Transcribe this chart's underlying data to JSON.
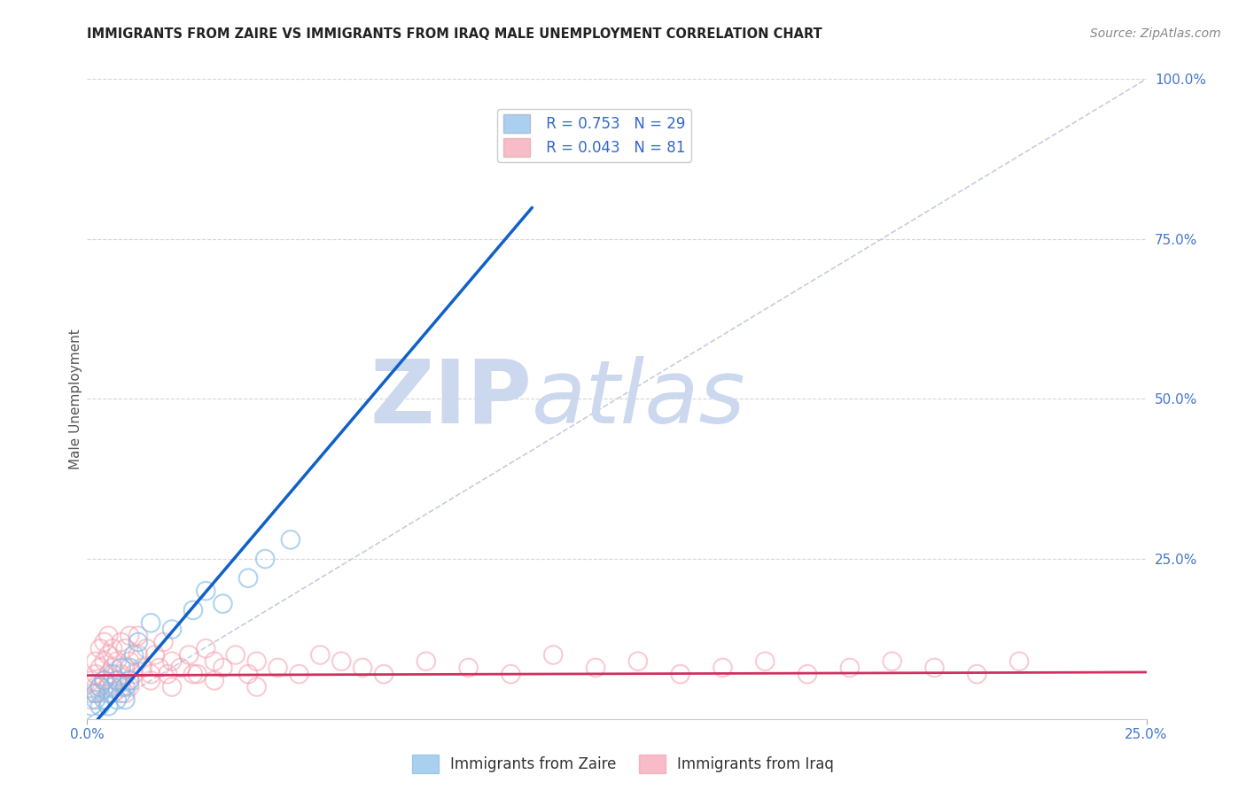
{
  "title": "IMMIGRANTS FROM ZAIRE VS IMMIGRANTS FROM IRAQ MALE UNEMPLOYMENT CORRELATION CHART",
  "source": "Source: ZipAtlas.com",
  "ylabel": "Male Unemployment",
  "xlim": [
    0.0,
    0.25
  ],
  "ylim": [
    0.0,
    1.0
  ],
  "xticks": [
    0.0,
    0.25
  ],
  "xticklabels": [
    "0.0%",
    "25.0%"
  ],
  "yticks": [
    0.0,
    0.25,
    0.5,
    0.75,
    1.0
  ],
  "yticklabels_right": [
    "",
    "25.0%",
    "50.0%",
    "75.0%",
    "100.0%"
  ],
  "grid_yticks": [
    0.25,
    0.5,
    0.75,
    1.0
  ],
  "zaire_R": 0.753,
  "zaire_N": 29,
  "iraq_R": 0.043,
  "iraq_N": 81,
  "zaire_scatter_color": "#85bde8",
  "iraq_scatter_color": "#f5a0b0",
  "zaire_line_color": "#1060c8",
  "iraq_line_color": "#d03060",
  "ref_line_color": "#c0c8d8",
  "watermark_zip": "ZIP",
  "watermark_atlas": "atlas",
  "watermark_color": "#ccd8ee",
  "background_color": "#ffffff",
  "legend_text_color": "#3366cc",
  "tick_color": "#4477cc",
  "ylabel_color": "#555555",
  "title_color": "#222222",
  "zaire_scatter_x": [
    0.001,
    0.002,
    0.002,
    0.003,
    0.003,
    0.004,
    0.004,
    0.005,
    0.005,
    0.006,
    0.006,
    0.007,
    0.007,
    0.008,
    0.008,
    0.009,
    0.009,
    0.01,
    0.01,
    0.011,
    0.012,
    0.015,
    0.02,
    0.025,
    0.028,
    0.032,
    0.038,
    0.042,
    0.048
  ],
  "zaire_scatter_y": [
    0.02,
    0.03,
    0.04,
    0.02,
    0.05,
    0.03,
    0.06,
    0.04,
    0.02,
    0.05,
    0.07,
    0.03,
    0.06,
    0.04,
    0.08,
    0.05,
    0.03,
    0.06,
    0.08,
    0.1,
    0.12,
    0.15,
    0.14,
    0.17,
    0.2,
    0.18,
    0.22,
    0.25,
    0.28
  ],
  "iraq_scatter_x": [
    0.001,
    0.001,
    0.002,
    0.002,
    0.002,
    0.003,
    0.003,
    0.003,
    0.004,
    0.004,
    0.004,
    0.005,
    0.005,
    0.005,
    0.006,
    0.006,
    0.007,
    0.007,
    0.008,
    0.008,
    0.009,
    0.009,
    0.01,
    0.01,
    0.01,
    0.011,
    0.012,
    0.012,
    0.013,
    0.014,
    0.015,
    0.016,
    0.017,
    0.018,
    0.019,
    0.02,
    0.022,
    0.024,
    0.026,
    0.028,
    0.03,
    0.032,
    0.035,
    0.038,
    0.04,
    0.045,
    0.05,
    0.055,
    0.06,
    0.065,
    0.07,
    0.08,
    0.09,
    0.1,
    0.11,
    0.12,
    0.13,
    0.14,
    0.15,
    0.16,
    0.17,
    0.18,
    0.19,
    0.2,
    0.21,
    0.22,
    0.001,
    0.002,
    0.003,
    0.004,
    0.005,
    0.006,
    0.007,
    0.008,
    0.009,
    0.01,
    0.015,
    0.02,
    0.025,
    0.03,
    0.04
  ],
  "iraq_scatter_y": [
    0.03,
    0.06,
    0.04,
    0.07,
    0.09,
    0.05,
    0.08,
    0.11,
    0.06,
    0.09,
    0.12,
    0.07,
    0.1,
    0.13,
    0.08,
    0.11,
    0.06,
    0.09,
    0.07,
    0.12,
    0.08,
    0.11,
    0.06,
    0.09,
    0.13,
    0.07,
    0.1,
    0.13,
    0.08,
    0.11,
    0.07,
    0.1,
    0.08,
    0.12,
    0.07,
    0.09,
    0.08,
    0.1,
    0.07,
    0.11,
    0.09,
    0.08,
    0.1,
    0.07,
    0.09,
    0.08,
    0.07,
    0.1,
    0.09,
    0.08,
    0.07,
    0.09,
    0.08,
    0.07,
    0.1,
    0.08,
    0.09,
    0.07,
    0.08,
    0.09,
    0.07,
    0.08,
    0.09,
    0.08,
    0.07,
    0.09,
    0.04,
    0.05,
    0.04,
    0.06,
    0.05,
    0.04,
    0.06,
    0.05,
    0.04,
    0.05,
    0.06,
    0.05,
    0.07,
    0.06,
    0.05
  ],
  "title_fontsize": 10.5,
  "axis_label_fontsize": 11,
  "tick_fontsize": 11,
  "legend_fontsize": 12,
  "source_fontsize": 10
}
